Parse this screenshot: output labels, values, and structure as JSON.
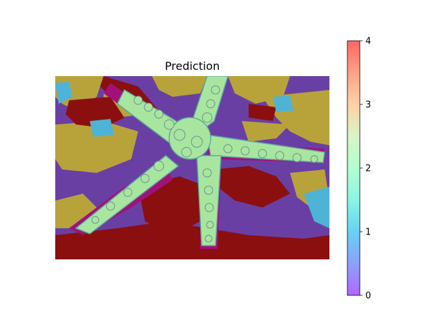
{
  "title": "Prediction",
  "chart_data": {
    "type": "heatmap",
    "title": "Prediction",
    "colorbar": {
      "ticks": [
        0,
        1,
        2,
        3,
        4
      ],
      "range": [
        0,
        4
      ],
      "colormap": "rainbow",
      "alpha": 0.6
    },
    "axes_visible": false,
    "grid": false
  },
  "colors": {
    "class_0": "#6a3fa4",
    "class_1": "#4fb3d6",
    "class_2": "#a8e6a0",
    "class_3": "#b8a33a",
    "class_4": "#8b0f0f",
    "pink_region": "#a0127a"
  }
}
